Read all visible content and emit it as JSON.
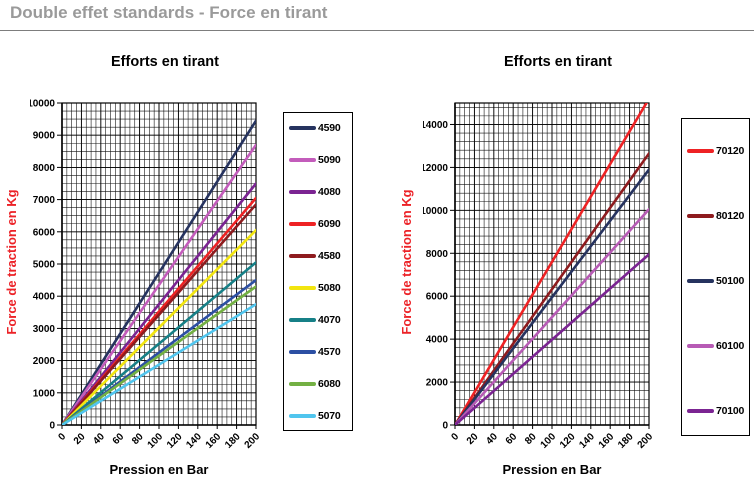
{
  "page": {
    "title": "Double effet standards - Force en tirant"
  },
  "chart_data": [
    {
      "type": "line",
      "title": "Efforts en tirant",
      "xlabel": "Pression en Bar",
      "ylabel": "Force de traction en Kg",
      "xlim": [
        0,
        200
      ],
      "ylim": [
        0,
        10000
      ],
      "x_ticks": [
        0,
        20,
        40,
        60,
        80,
        100,
        120,
        140,
        160,
        180,
        200
      ],
      "y_ticks": [
        0,
        1000,
        2000,
        3000,
        4000,
        5000,
        6000,
        7000,
        8000,
        9000,
        10000
      ],
      "x_minor_step": 5,
      "y_minor_step": 250,
      "grid": true,
      "legend_position": "right",
      "x": [
        0,
        200
      ],
      "series": [
        {
          "name": "4590",
          "color": "#26335f",
          "values": [
            0,
            9450
          ]
        },
        {
          "name": "5090",
          "color": "#c35cbb",
          "values": [
            0,
            8700
          ]
        },
        {
          "name": "4080",
          "color": "#7b2492",
          "values": [
            0,
            7500
          ]
        },
        {
          "name": "6090",
          "color": "#ee2224",
          "values": [
            0,
            7050
          ]
        },
        {
          "name": "4580",
          "color": "#8e1b1e",
          "values": [
            0,
            6850
          ]
        },
        {
          "name": "5080",
          "color": "#f2e50f",
          "values": [
            0,
            6050
          ]
        },
        {
          "name": "4070",
          "color": "#168087",
          "values": [
            0,
            5050
          ]
        },
        {
          "name": "4570",
          "color": "#2c4fa3",
          "values": [
            0,
            4500
          ]
        },
        {
          "name": "6080",
          "color": "#73b043",
          "values": [
            0,
            4300
          ]
        },
        {
          "name": "5070",
          "color": "#50c5ee",
          "values": [
            0,
            3750
          ]
        }
      ]
    },
    {
      "type": "line",
      "title": "Efforts en tirant",
      "xlabel": "Pression en Bar",
      "ylabel": "Force de traction en Kg",
      "xlim": [
        0,
        200
      ],
      "ylim": [
        0,
        15000
      ],
      "x_ticks": [
        0,
        20,
        40,
        60,
        80,
        100,
        120,
        140,
        160,
        180,
        200
      ],
      "y_ticks": [
        0,
        2000,
        4000,
        6000,
        8000,
        10000,
        12000,
        14000
      ],
      "x_minor_step": 5,
      "y_minor_step": 400,
      "grid": true,
      "legend_position": "right",
      "x": [
        0,
        200
      ],
      "series": [
        {
          "name": "70120",
          "color": "#ee2224",
          "values": [
            0,
            15200
          ]
        },
        {
          "name": "80120",
          "color": "#8e1b1e",
          "values": [
            0,
            12650
          ]
        },
        {
          "name": "50100",
          "color": "#26335f",
          "values": [
            0,
            11900
          ]
        },
        {
          "name": "60100",
          "color": "#b75bb5",
          "values": [
            0,
            10050
          ]
        },
        {
          "name": "70100",
          "color": "#7b2492",
          "values": [
            0,
            7950
          ]
        }
      ]
    }
  ]
}
